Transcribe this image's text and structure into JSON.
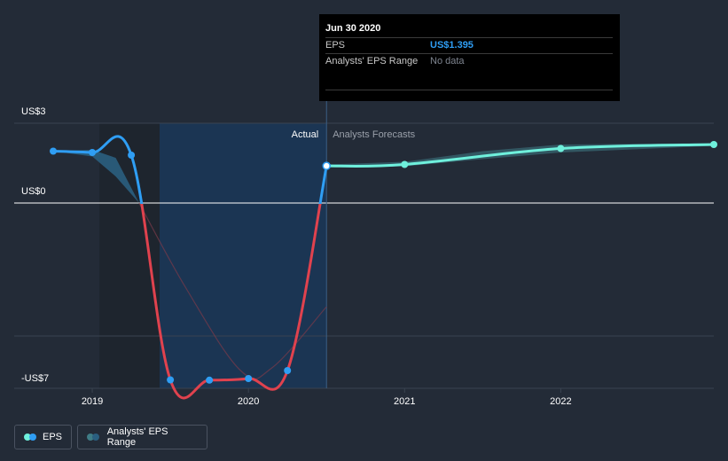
{
  "chart_data": {
    "type": "line",
    "title": "",
    "ylim": [
      -7,
      3
    ],
    "y_ticks": [
      {
        "value": 3,
        "label": "US$3"
      },
      {
        "value": 0,
        "label": "US$0"
      },
      {
        "value": -7,
        "label": "-US$7"
      }
    ],
    "x_ticks": [
      {
        "value": 2019.0,
        "label": "2019"
      },
      {
        "value": 2020.0,
        "label": "2020"
      },
      {
        "value": 2021.0,
        "label": "2021"
      },
      {
        "value": 2022.0,
        "label": "2022"
      }
    ],
    "xlim": [
      2018.5,
      2022.98
    ],
    "region_labels": {
      "actual": "Actual",
      "forecast": "Analysts Forecasts"
    },
    "divider_x": 2020.5,
    "series": [
      {
        "name": "EPS",
        "kind": "actual",
        "points": [
          {
            "x": 2018.75,
            "y": 1.95
          },
          {
            "x": 2019.0,
            "y": 1.9
          },
          {
            "x": 2019.25,
            "y": 1.8
          },
          {
            "x": 2019.5,
            "y": -6.65
          },
          {
            "x": 2019.75,
            "y": -6.66
          },
          {
            "x": 2020.0,
            "y": -6.6
          },
          {
            "x": 2020.25,
            "y": -6.3
          },
          {
            "x": 2020.5,
            "y": 1.395
          }
        ]
      },
      {
        "name": "Analysts' EPS Range",
        "kind": "forecast",
        "points": [
          {
            "x": 2020.5,
            "y": 1.395
          },
          {
            "x": 2021.0,
            "y": 1.45
          },
          {
            "x": 2022.0,
            "y": 2.05
          },
          {
            "x": 2022.98,
            "y": 2.2
          }
        ]
      }
    ],
    "colors": {
      "eps_positive": "#2f9ef4",
      "eps_negative": "#e0424e",
      "forecast": "#6ff0dc",
      "range": "#3f7c86",
      "actual_region": "#1b3656"
    }
  },
  "tooltip": {
    "date": "Jun 30 2020",
    "rows": [
      {
        "label": "EPS",
        "value": "US$1.395"
      },
      {
        "label": "Analysts' EPS Range",
        "value": "No data"
      }
    ]
  },
  "legend": {
    "eps": {
      "label": "EPS",
      "color_a": "#6ff0dc",
      "color_b": "#2f9ef4"
    },
    "range": {
      "label": "Analysts' EPS Range",
      "color_a": "#3f7c86",
      "color_b": "#2a5f80"
    }
  }
}
